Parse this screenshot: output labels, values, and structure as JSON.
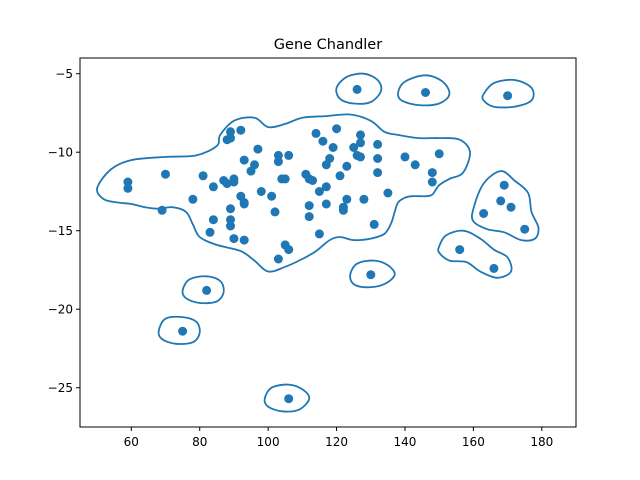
{
  "chart_data": {
    "type": "scatter",
    "title": "Gene Chandler",
    "xlabel": "",
    "ylabel": "",
    "xlim": [
      45,
      190
    ],
    "ylim": [
      -27.5,
      -4.0
    ],
    "xticks": [
      60,
      80,
      100,
      120,
      140,
      160,
      180
    ],
    "yticks": [
      -5,
      -10,
      -15,
      -20,
      -25
    ],
    "grid": false,
    "colors": {
      "point": "#1f77b4",
      "contour": "#1f77b4"
    },
    "points": [
      [
        59,
        -11.9
      ],
      [
        59,
        -12.3
      ],
      [
        70,
        -11.4
      ],
      [
        69,
        -13.7
      ],
      [
        78,
        -13.0
      ],
      [
        81,
        -11.5
      ],
      [
        84,
        -12.2
      ],
      [
        84,
        -14.3
      ],
      [
        83,
        -15.1
      ],
      [
        87,
        -11.8
      ],
      [
        88,
        -12.0
      ],
      [
        88,
        -9.2
      ],
      [
        89,
        -8.7
      ],
      [
        89,
        -9.1
      ],
      [
        89,
        -13.6
      ],
      [
        89,
        -14.7
      ],
      [
        89,
        -14.3
      ],
      [
        90,
        -15.5
      ],
      [
        90,
        -11.9
      ],
      [
        90,
        -11.7
      ],
      [
        92,
        -8.6
      ],
      [
        93,
        -10.5
      ],
      [
        92,
        -12.8
      ],
      [
        93,
        -13.3
      ],
      [
        93,
        -13.2
      ],
      [
        93,
        -15.6
      ],
      [
        95,
        -11.2
      ],
      [
        96,
        -10.8
      ],
      [
        97,
        -9.8
      ],
      [
        98,
        -12.5
      ],
      [
        101,
        -12.8
      ],
      [
        102,
        -13.8
      ],
      [
        103,
        -10.2
      ],
      [
        103,
        -10.6
      ],
      [
        104,
        -11.7
      ],
      [
        103,
        -16.8
      ],
      [
        105,
        -11.7
      ],
      [
        105,
        -15.9
      ],
      [
        106,
        -16.2
      ],
      [
        106,
        -10.2
      ],
      [
        111,
        -11.4
      ],
      [
        112,
        -11.7
      ],
      [
        112,
        -13.4
      ],
      [
        112,
        -14.1
      ],
      [
        113,
        -11.8
      ],
      [
        114,
        -8.8
      ],
      [
        115,
        -12.5
      ],
      [
        115,
        -15.2
      ],
      [
        116,
        -9.3
      ],
      [
        117,
        -13.3
      ],
      [
        117,
        -12.2
      ],
      [
        117,
        -10.8
      ],
      [
        118,
        -10.4
      ],
      [
        119,
        -9.7
      ],
      [
        120,
        -8.5
      ],
      [
        121,
        -11.5
      ],
      [
        122,
        -13.5
      ],
      [
        122,
        -13.7
      ],
      [
        123,
        -13.0
      ],
      [
        123,
        -10.9
      ],
      [
        125,
        -9.7
      ],
      [
        126,
        -10.2
      ],
      [
        127,
        -8.9
      ],
      [
        127,
        -9.4
      ],
      [
        127,
        -10.3
      ],
      [
        128,
        -13.0
      ],
      [
        131,
        -14.6
      ],
      [
        132,
        -11.3
      ],
      [
        132,
        -10.4
      ],
      [
        132,
        -9.5
      ],
      [
        135,
        -12.6
      ],
      [
        140,
        -10.3
      ],
      [
        143,
        -10.8
      ],
      [
        148,
        -11.3
      ],
      [
        148,
        -11.9
      ],
      [
        150,
        -10.1
      ],
      [
        126,
        -6.0
      ],
      [
        146,
        -6.2
      ],
      [
        170,
        -6.4
      ],
      [
        169,
        -12.1
      ],
      [
        168,
        -13.1
      ],
      [
        171,
        -13.5
      ],
      [
        163,
        -13.9
      ],
      [
        175,
        -14.9
      ],
      [
        156,
        -16.2
      ],
      [
        166,
        -17.4
      ],
      [
        130,
        -17.8
      ],
      [
        82,
        -18.8
      ],
      [
        75,
        -21.4
      ],
      [
        106,
        -25.7
      ]
    ],
    "contours": [
      [
        [
          50,
          -12.3
        ],
        [
          54,
          -11.1
        ],
        [
          60,
          -10.5
        ],
        [
          70,
          -10.3
        ],
        [
          79,
          -10.2
        ],
        [
          85,
          -9.6
        ],
        [
          86,
          -8.9
        ],
        [
          90,
          -8.0
        ],
        [
          96,
          -7.8
        ],
        [
          100,
          -8.4
        ],
        [
          105,
          -8.2
        ],
        [
          110,
          -7.8
        ],
        [
          117,
          -7.7
        ],
        [
          124,
          -7.6
        ],
        [
          130,
          -8.0
        ],
        [
          134,
          -8.7
        ],
        [
          138,
          -8.9
        ],
        [
          144,
          -9.1
        ],
        [
          150,
          -9.1
        ],
        [
          156,
          -9.2
        ],
        [
          159,
          -10.0
        ],
        [
          157,
          -11.3
        ],
        [
          153,
          -11.7
        ],
        [
          150,
          -12.1
        ],
        [
          148,
          -12.7
        ],
        [
          146,
          -12.8
        ],
        [
          142,
          -12.8
        ],
        [
          140,
          -12.9
        ],
        [
          138,
          -13.2
        ],
        [
          137,
          -13.8
        ],
        [
          136,
          -14.5
        ],
        [
          134,
          -15.2
        ],
        [
          130,
          -15.5
        ],
        [
          125,
          -15.6
        ],
        [
          121,
          -15.4
        ],
        [
          118,
          -15.6
        ],
        [
          114,
          -16.3
        ],
        [
          110,
          -16.8
        ],
        [
          105,
          -17.3
        ],
        [
          100,
          -17.6
        ],
        [
          96,
          -16.9
        ],
        [
          92,
          -16.3
        ],
        [
          85,
          -15.9
        ],
        [
          80,
          -15.4
        ],
        [
          78,
          -14.6
        ],
        [
          76,
          -13.8
        ],
        [
          72,
          -13.5
        ],
        [
          68,
          -13.6
        ],
        [
          64,
          -13.5
        ],
        [
          60,
          -13.3
        ],
        [
          56,
          -13.2
        ],
        [
          52,
          -13.0
        ],
        [
          50,
          -12.3
        ]
      ],
      [
        [
          120,
          -5.9
        ],
        [
          123,
          -5.2
        ],
        [
          128,
          -5.0
        ],
        [
          132,
          -5.4
        ],
        [
          133,
          -6.1
        ],
        [
          130,
          -6.8
        ],
        [
          125,
          -6.9
        ],
        [
          121,
          -6.6
        ],
        [
          120,
          -5.9
        ]
      ],
      [
        [
          138,
          -6.2
        ],
        [
          140,
          -5.5
        ],
        [
          146,
          -5.1
        ],
        [
          151,
          -5.5
        ],
        [
          153,
          -6.3
        ],
        [
          150,
          -6.9
        ],
        [
          144,
          -7.0
        ],
        [
          139,
          -6.7
        ],
        [
          138,
          -6.2
        ]
      ],
      [
        [
          163,
          -6.3
        ],
        [
          166,
          -5.6
        ],
        [
          172,
          -5.4
        ],
        [
          177,
          -5.9
        ],
        [
          177,
          -6.7
        ],
        [
          172,
          -7.1
        ],
        [
          166,
          -7.1
        ],
        [
          163,
          -6.7
        ],
        [
          163,
          -6.3
        ]
      ],
      [
        [
          160,
          -13.6
        ],
        [
          163,
          -12.0
        ],
        [
          168,
          -11.2
        ],
        [
          172,
          -11.8
        ],
        [
          176,
          -12.6
        ],
        [
          177,
          -13.8
        ],
        [
          179,
          -14.8
        ],
        [
          178,
          -15.5
        ],
        [
          174,
          -15.6
        ],
        [
          169,
          -15.1
        ],
        [
          164,
          -14.9
        ],
        [
          160,
          -14.4
        ],
        [
          160,
          -13.6
        ]
      ],
      [
        [
          150,
          -16.0
        ],
        [
          152,
          -15.3
        ],
        [
          157,
          -15.0
        ],
        [
          162,
          -15.5
        ],
        [
          166,
          -16.2
        ],
        [
          170,
          -16.7
        ],
        [
          171,
          -17.6
        ],
        [
          167,
          -18.0
        ],
        [
          162,
          -17.6
        ],
        [
          158,
          -17.0
        ],
        [
          153,
          -16.9
        ],
        [
          150,
          -16.4
        ],
        [
          150,
          -16.0
        ]
      ],
      [
        [
          124,
          -17.8
        ],
        [
          126,
          -17.1
        ],
        [
          131,
          -16.9
        ],
        [
          135,
          -17.2
        ],
        [
          137,
          -17.8
        ],
        [
          134,
          -18.4
        ],
        [
          129,
          -18.6
        ],
        [
          125,
          -18.4
        ],
        [
          124,
          -17.8
        ]
      ],
      [
        [
          75,
          -18.8
        ],
        [
          77,
          -18.1
        ],
        [
          82,
          -17.9
        ],
        [
          86,
          -18.2
        ],
        [
          87,
          -18.9
        ],
        [
          85,
          -19.5
        ],
        [
          80,
          -19.6
        ],
        [
          76,
          -19.3
        ],
        [
          75,
          -18.8
        ]
      ],
      [
        [
          68,
          -21.4
        ],
        [
          70,
          -20.6
        ],
        [
          75,
          -20.5
        ],
        [
          79,
          -20.8
        ],
        [
          80,
          -21.5
        ],
        [
          78,
          -22.1
        ],
        [
          73,
          -22.2
        ],
        [
          69,
          -21.9
        ],
        [
          68,
          -21.4
        ]
      ],
      [
        [
          99,
          -25.7
        ],
        [
          101,
          -25.0
        ],
        [
          106,
          -24.8
        ],
        [
          110,
          -25.1
        ],
        [
          112,
          -25.7
        ],
        [
          109,
          -26.4
        ],
        [
          104,
          -26.5
        ],
        [
          100,
          -26.2
        ],
        [
          99,
          -25.7
        ]
      ]
    ]
  }
}
